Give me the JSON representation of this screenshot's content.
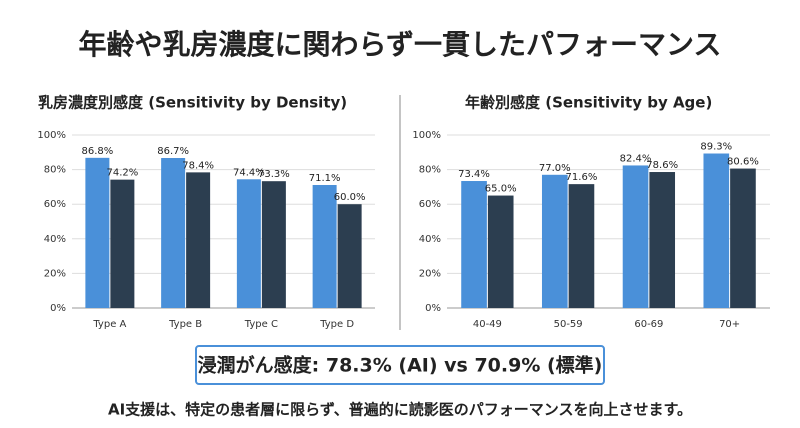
{
  "title": "年齢や乳房濃度に関わらず一貫したパフォーマンス",
  "chart_data": [
    {
      "type": "bar",
      "title": "乳房濃度別感度 (Sensitivity by Density)",
      "categories": [
        "Type A",
        "Type B",
        "Type C",
        "Type D"
      ],
      "series": [
        {
          "color": "#4a90d9",
          "values": [
            86.8,
            86.7,
            74.4,
            71.1
          ],
          "value_labels": [
            "86.8%",
            "86.7%",
            "74.4%",
            "71.1%"
          ]
        },
        {
          "color": "#2c3e50",
          "values": [
            74.2,
            78.4,
            73.3,
            60.0
          ],
          "value_labels": [
            "74.2%",
            "78.4%",
            "73.3%",
            "60.0%"
          ]
        }
      ],
      "ylim": [
        0,
        100
      ],
      "yticks": [
        {
          "value": 0,
          "label": "0%"
        },
        {
          "value": 20,
          "label": "20%"
        },
        {
          "value": 40,
          "label": "40%"
        },
        {
          "value": 60,
          "label": "60%"
        },
        {
          "value": 80,
          "label": "80%"
        },
        {
          "value": 100,
          "label": "100%"
        }
      ],
      "grid": true
    },
    {
      "type": "bar",
      "title": "年齢別感度 (Sensitivity by Age)",
      "categories": [
        "40-49",
        "50-59",
        "60-69",
        "70+"
      ],
      "series": [
        {
          "color": "#4a90d9",
          "values": [
            73.4,
            77.0,
            82.4,
            89.3
          ],
          "value_labels": [
            "73.4%",
            "77.0%",
            "82.4%",
            "89.3%"
          ]
        },
        {
          "color": "#2c3e50",
          "values": [
            65.0,
            71.6,
            78.6,
            80.6
          ],
          "value_labels": [
            "65.0%",
            "71.6%",
            "78.6%",
            "80.6%"
          ]
        }
      ],
      "ylim": [
        0,
        100
      ],
      "yticks": [
        {
          "value": 0,
          "label": "0%"
        },
        {
          "value": 20,
          "label": "20%"
        },
        {
          "value": 40,
          "label": "40%"
        },
        {
          "value": 60,
          "label": "60%"
        },
        {
          "value": 80,
          "label": "80%"
        },
        {
          "value": 100,
          "label": "100%"
        }
      ],
      "grid": true
    }
  ],
  "callout": "浸潤がん感度: 78.3% (AI) vs 70.9% (標準)",
  "footer": "AI支援は、特定の患者層に限らず、普遍的に読影医のパフォーマンスを向上させます。"
}
